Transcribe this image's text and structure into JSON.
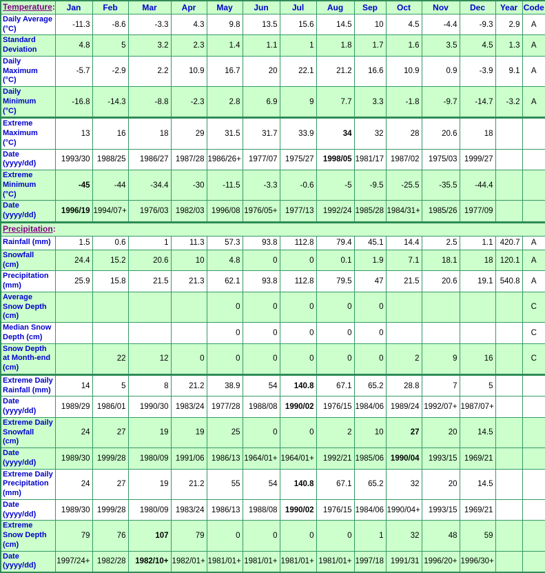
{
  "colors": {
    "row_green": "#CCFFCC",
    "row_white": "#FFFFFF",
    "border_green": "#339966",
    "section_border": "#2E8B57",
    "label_blue": "#0000CC",
    "section_link_purple": "#800080",
    "value_black": "#000000"
  },
  "table": {
    "rows": [
      {
        "kind": "month-header",
        "bg": "green",
        "link": "Temperature",
        "colon": ":",
        "cells": [
          "Jan",
          "Feb",
          "Mar",
          "Apr",
          "May",
          "Jun",
          "Jul",
          "Aug",
          "Sep",
          "Oct",
          "Nov",
          "Dec",
          "Year",
          "Code"
        ]
      },
      {
        "kind": "data",
        "bg": "white",
        "label": [
          "Daily Average",
          "(°C)"
        ],
        "cells": [
          "-11.3",
          "-8.6",
          "-3.3",
          "4.3",
          "9.8",
          "13.5",
          "15.6",
          "14.5",
          "10",
          "4.5",
          "-4.4",
          "-9.3",
          "2.9",
          "A"
        ],
        "bold": []
      },
      {
        "kind": "data",
        "bg": "green",
        "label": [
          "Standard",
          "Deviation"
        ],
        "cells": [
          "4.8",
          "5",
          "3.2",
          "2.3",
          "1.4",
          "1.1",
          "1",
          "1.8",
          "1.7",
          "1.6",
          "3.5",
          "4.5",
          "1.3",
          "A"
        ],
        "bold": []
      },
      {
        "kind": "data",
        "bg": "white",
        "label": [
          "Daily",
          "Maximum",
          "(°C)"
        ],
        "cells": [
          "-5.7",
          "-2.9",
          "2.2",
          "10.9",
          "16.7",
          "20",
          "22.1",
          "21.2",
          "16.6",
          "10.9",
          "0.9",
          "-3.9",
          "9.1",
          "A"
        ],
        "bold": []
      },
      {
        "kind": "data",
        "bg": "green",
        "label": [
          "Daily",
          "Minimum",
          "(°C)"
        ],
        "cells": [
          "-16.8",
          "-14.3",
          "-8.8",
          "-2.3",
          "2.8",
          "6.9",
          "9",
          "7.7",
          "3.3",
          "-1.8",
          "-9.7",
          "-14.7",
          "-3.2",
          "A"
        ],
        "bold": []
      },
      {
        "kind": "data",
        "bg": "white",
        "thickTop": true,
        "label": [
          "Extreme",
          "Maximum",
          "(°C)"
        ],
        "cells": [
          "13",
          "16",
          "18",
          "29",
          "31.5",
          "31.7",
          "33.9",
          "34",
          "32",
          "28",
          "20.6",
          "18",
          "",
          ""
        ],
        "bold": [
          7
        ]
      },
      {
        "kind": "data",
        "bg": "white",
        "label": [
          "Date",
          "(yyyy/dd)"
        ],
        "cells": [
          "1993/30",
          "1988/25",
          "1986/27",
          "1987/28",
          "1986/26+",
          "1977/07",
          "1975/27",
          "1998/05",
          "1981/17",
          "1987/02",
          "1975/03",
          "1999/27",
          "",
          ""
        ],
        "bold": [
          7
        ]
      },
      {
        "kind": "data",
        "bg": "green",
        "label": [
          "Extreme",
          "Minimum",
          "(°C)"
        ],
        "cells": [
          "-45",
          "-44",
          "-34.4",
          "-30",
          "-11.5",
          "-3.3",
          "-0.6",
          "-5",
          "-9.5",
          "-25.5",
          "-35.5",
          "-44.4",
          "",
          ""
        ],
        "bold": [
          0
        ]
      },
      {
        "kind": "data",
        "bg": "green",
        "label": [
          "Date",
          "(yyyy/dd)"
        ],
        "cells": [
          "1996/19",
          "1994/07+",
          "1976/03",
          "1982/03",
          "1996/08",
          "1976/05+",
          "1977/13",
          "1992/24",
          "1985/28",
          "1984/31+",
          "1985/26",
          "1977/09",
          "",
          ""
        ],
        "bold": [
          0
        ]
      },
      {
        "kind": "section",
        "bg": "green",
        "thickTop": true,
        "link": "Precipitation",
        "colon": ":"
      },
      {
        "kind": "data",
        "bg": "white",
        "label": [
          "Rainfall (mm)"
        ],
        "cells": [
          "1.5",
          "0.6",
          "1",
          "11.3",
          "57.3",
          "93.8",
          "112.8",
          "79.4",
          "45.1",
          "14.4",
          "2.5",
          "1.1",
          "420.7",
          "A"
        ],
        "bold": []
      },
      {
        "kind": "data",
        "bg": "green",
        "label": [
          "Snowfall",
          "(cm)"
        ],
        "cells": [
          "24.4",
          "15.2",
          "20.6",
          "10",
          "4.8",
          "0",
          "0",
          "0.1",
          "1.9",
          "7.1",
          "18.1",
          "18",
          "120.1",
          "A"
        ],
        "bold": []
      },
      {
        "kind": "data",
        "bg": "white",
        "label": [
          "Precipitation",
          "(mm)"
        ],
        "cells": [
          "25.9",
          "15.8",
          "21.5",
          "21.3",
          "62.1",
          "93.8",
          "112.8",
          "79.5",
          "47",
          "21.5",
          "20.6",
          "19.1",
          "540.8",
          "A"
        ],
        "bold": []
      },
      {
        "kind": "data",
        "bg": "green",
        "label": [
          "Average",
          "Snow Depth",
          "(cm)"
        ],
        "cells": [
          "",
          "",
          "",
          "",
          "0",
          "0",
          "0",
          "0",
          "0",
          "",
          "",
          "",
          "",
          "C"
        ],
        "bold": []
      },
      {
        "kind": "data",
        "bg": "white",
        "label": [
          "Median Snow",
          "Depth (cm)"
        ],
        "cells": [
          "",
          "",
          "",
          "",
          "0",
          "0",
          "0",
          "0",
          "0",
          "",
          "",
          "",
          "",
          "C"
        ],
        "bold": []
      },
      {
        "kind": "data",
        "bg": "green",
        "label": [
          "Snow Depth",
          "at Month-end",
          "(cm)"
        ],
        "cells": [
          "",
          "22",
          "12",
          "0",
          "0",
          "0",
          "0",
          "0",
          "0",
          "2",
          "9",
          "16",
          "",
          "C"
        ],
        "bold": []
      },
      {
        "kind": "data",
        "bg": "white",
        "thickTop": true,
        "label": [
          "Extreme Daily",
          "Rainfall (mm)"
        ],
        "cells": [
          "14",
          "5",
          "8",
          "21.2",
          "38.9",
          "54",
          "140.8",
          "67.1",
          "65.2",
          "28.8",
          "7",
          "5",
          "",
          ""
        ],
        "bold": [
          6
        ]
      },
      {
        "kind": "data",
        "bg": "white",
        "label": [
          "Date",
          "(yyyy/dd)"
        ],
        "cells": [
          "1989/29",
          "1986/01",
          "1990/30",
          "1983/24",
          "1977/28",
          "1988/08",
          "1990/02",
          "1976/15",
          "1984/06",
          "1989/24",
          "1992/07+",
          "1987/07+",
          "",
          ""
        ],
        "bold": [
          6
        ]
      },
      {
        "kind": "data",
        "bg": "green",
        "label": [
          "Extreme Daily",
          "Snowfall",
          "(cm)"
        ],
        "cells": [
          "24",
          "27",
          "19",
          "19",
          "25",
          "0",
          "0",
          "2",
          "10",
          "27",
          "20",
          "14.5",
          "",
          ""
        ],
        "bold": [
          9
        ]
      },
      {
        "kind": "data",
        "bg": "green",
        "label": [
          "Date",
          "(yyyy/dd)"
        ],
        "cells": [
          "1989/30",
          "1999/28",
          "1980/09",
          "1991/06",
          "1986/13",
          "1964/01+",
          "1964/01+",
          "1992/21",
          "1985/06",
          "1990/04",
          "1993/15",
          "1969/21",
          "",
          ""
        ],
        "bold": [
          9
        ]
      },
      {
        "kind": "data",
        "bg": "white",
        "label": [
          "Extreme Daily",
          "Precipitation",
          "(mm)"
        ],
        "cells": [
          "24",
          "27",
          "19",
          "21.2",
          "55",
          "54",
          "140.8",
          "67.1",
          "65.2",
          "32",
          "20",
          "14.5",
          "",
          ""
        ],
        "bold": [
          6
        ]
      },
      {
        "kind": "data",
        "bg": "white",
        "label": [
          "Date",
          "(yyyy/dd)"
        ],
        "cells": [
          "1989/30",
          "1999/28",
          "1980/09",
          "1983/24",
          "1986/13",
          "1988/08",
          "1990/02",
          "1976/15",
          "1984/06",
          "1990/04+",
          "1993/15",
          "1969/21",
          "",
          ""
        ],
        "bold": [
          6
        ]
      },
      {
        "kind": "data",
        "bg": "green",
        "label": [
          "Extreme",
          "Snow Depth",
          "(cm)"
        ],
        "cells": [
          "79",
          "76",
          "107",
          "79",
          "0",
          "0",
          "0",
          "0",
          "1",
          "32",
          "48",
          "59",
          "",
          ""
        ],
        "bold": [
          2
        ]
      },
      {
        "kind": "data",
        "bg": "green",
        "label": [
          "Date",
          "(yyyy/dd)"
        ],
        "cells": [
          "1997/24+",
          "1982/28",
          "1982/10+",
          "1982/01+",
          "1981/01+",
          "1981/01+",
          "1981/01+",
          "1981/01+",
          "1997/18",
          "1991/31",
          "1996/20+",
          "1996/30+",
          "",
          ""
        ],
        "bold": [
          2
        ]
      }
    ]
  }
}
